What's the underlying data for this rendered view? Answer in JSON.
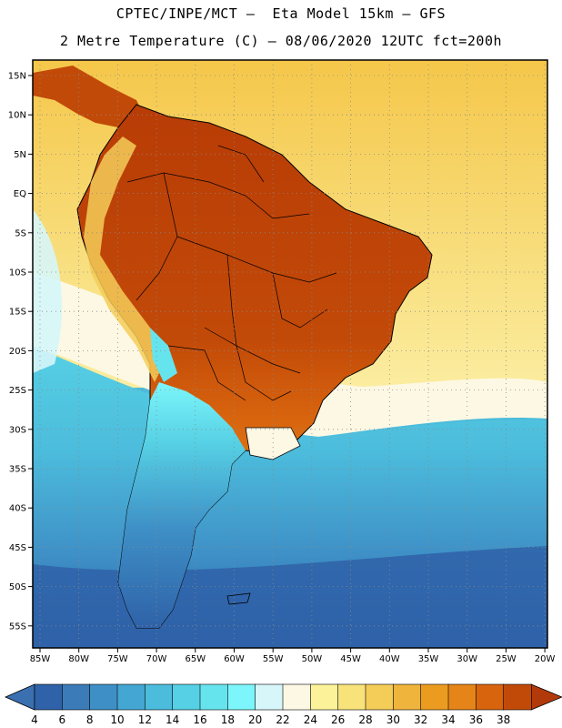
{
  "header": {
    "line1": "CPTEC/INPE/MCT –  Eta Model 15km – GFS",
    "line2": "2 Metre Temperature (C) – 08/06/2020 12UTC fct=200h"
  },
  "map": {
    "lat_labels": [
      "15N",
      "10N",
      "5N",
      "EQ",
      "5S",
      "10S",
      "15S",
      "20S",
      "25S",
      "30S",
      "35S",
      "40S",
      "45S",
      "50S",
      "55S"
    ],
    "lon_labels": [
      "85W",
      "80W",
      "75W",
      "70W",
      "65W",
      "60W",
      "55W",
      "50W",
      "45W",
      "40W",
      "35W",
      "30W",
      "25W",
      "20W"
    ]
  },
  "colorbar": {
    "labels": [
      "4",
      "6",
      "8",
      "10",
      "12",
      "14",
      "16",
      "18",
      "20",
      "22",
      "24",
      "26",
      "28",
      "30",
      "32",
      "34",
      "36",
      "38"
    ],
    "low_color": "#3a6fb0",
    "high_color": "#b23a0a",
    "colors": [
      "#2f62a8",
      "#3a7bb8",
      "#3e8fc6",
      "#44a6d2",
      "#4cbcdc",
      "#56d0e4",
      "#66e4ee",
      "#7cf6fa",
      "#d6f6fa",
      "#fdf8e4",
      "#fbf29a",
      "#f8e27a",
      "#f4cc58",
      "#efb43c",
      "#eb9c20",
      "#e58418",
      "#d8640e",
      "#c24a08"
    ]
  }
}
